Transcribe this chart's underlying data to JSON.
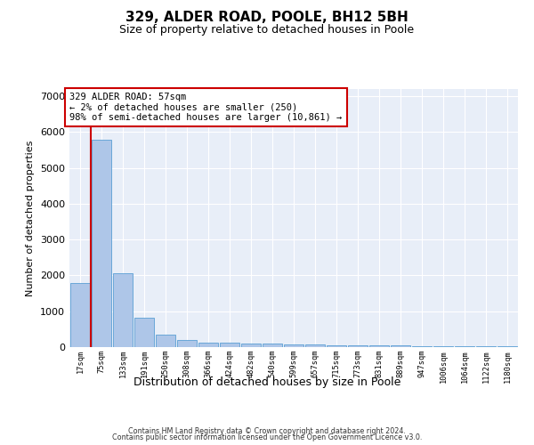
{
  "title": "329, ALDER ROAD, POOLE, BH12 5BH",
  "subtitle": "Size of property relative to detached houses in Poole",
  "xlabel": "Distribution of detached houses by size in Poole",
  "ylabel": "Number of detached properties",
  "bar_values": [
    1780,
    5780,
    2060,
    820,
    340,
    200,
    130,
    120,
    110,
    100,
    80,
    65,
    55,
    50,
    45,
    40,
    35,
    30,
    25,
    20,
    15
  ],
  "bin_labels": [
    "17sqm",
    "75sqm",
    "133sqm",
    "191sqm",
    "250sqm",
    "308sqm",
    "366sqm",
    "424sqm",
    "482sqm",
    "540sqm",
    "599sqm",
    "657sqm",
    "715sqm",
    "773sqm",
    "831sqm",
    "889sqm",
    "947sqm",
    "1006sqm",
    "1064sqm",
    "1122sqm",
    "1180sqm"
  ],
  "bar_color": "#aec6e8",
  "bar_edgecolor": "#5a9fd4",
  "marker_color": "#cc0000",
  "annotation_text": "329 ALDER ROAD: 57sqm\n← 2% of detached houses are smaller (250)\n98% of semi-detached houses are larger (10,861) →",
  "annotation_box_color": "#ffffff",
  "annotation_box_edgecolor": "#cc0000",
  "ylim": [
    0,
    7200
  ],
  "yticks": [
    0,
    1000,
    2000,
    3000,
    4000,
    5000,
    6000,
    7000
  ],
  "background_color": "#e8eef8",
  "grid_color": "#d0d8e8",
  "footer_line1": "Contains HM Land Registry data © Crown copyright and database right 2024.",
  "footer_line2": "Contains public sector information licensed under the Open Government Licence v3.0."
}
